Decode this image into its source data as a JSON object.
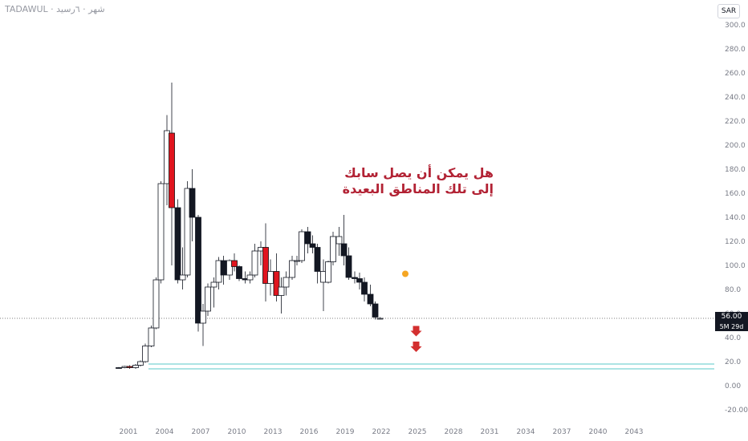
{
  "header": {
    "symbol": "TADAWUL · شهر · ٦رسيد"
  },
  "currency": "SAR",
  "annotation": {
    "line1": "هل يمكن أن يصل سابك",
    "line2": "إلى تلك المناطق البعيدة"
  },
  "last_price": {
    "value": "56.00",
    "countdown": "5M 29d"
  },
  "colors": {
    "up": "#2e7d32",
    "down": "#e0141e",
    "neutral": "#131722",
    "support": "#5ac8c8",
    "marker": "#f5a623",
    "arrow": "#d32f2f"
  },
  "chart_data": {
    "type": "candlestick",
    "title": "",
    "xlabel": "",
    "ylabel": "",
    "x_range": [
      2000,
      2044
    ],
    "ylim": [
      -25,
      305
    ],
    "x_ticks": [
      "2001",
      "2004",
      "2007",
      "2010",
      "2013",
      "2016",
      "2019",
      "2022",
      "2025",
      "2028",
      "2031",
      "2034",
      "2037",
      "2040",
      "2043"
    ],
    "y_ticks": [
      "300.0",
      "280.0",
      "260.0",
      "240.0",
      "220.0",
      "200.0",
      "180.0",
      "160.0",
      "140.0",
      "120.0",
      "100.0",
      "80.0",
      "60.0",
      "40.0",
      "20.0",
      "0.00",
      "-20.00"
    ],
    "last_value": 56,
    "support_lines": [
      18,
      14
    ],
    "marker": {
      "x": 2024.0,
      "y": 93
    },
    "arrows_down": [
      {
        "x": 2024.9,
        "y": 45
      },
      {
        "x": 2024.9,
        "y": 32
      }
    ],
    "candles": [
      {
        "x": 2000.2,
        "o": 15,
        "h": 15.5,
        "l": 14.5,
        "c": 15,
        "style": "neutral"
      },
      {
        "x": 2000.7,
        "o": 15,
        "h": 16.5,
        "l": 14.5,
        "c": 16,
        "style": "up"
      },
      {
        "x": 2001.1,
        "o": 16,
        "h": 17,
        "l": 14,
        "c": 15,
        "style": "down"
      },
      {
        "x": 2001.6,
        "o": 15,
        "h": 18,
        "l": 14,
        "c": 17,
        "style": "up"
      },
      {
        "x": 2002.0,
        "o": 17,
        "h": 21,
        "l": 16,
        "c": 20,
        "style": "up"
      },
      {
        "x": 2002.4,
        "o": 20,
        "h": 35,
        "l": 19,
        "c": 33,
        "style": "up"
      },
      {
        "x": 2002.9,
        "o": 33,
        "h": 50,
        "l": 32,
        "c": 48,
        "style": "up"
      },
      {
        "x": 2003.3,
        "o": 48,
        "h": 90,
        "l": 47,
        "c": 88,
        "style": "up"
      },
      {
        "x": 2003.7,
        "o": 88,
        "h": 170,
        "l": 85,
        "c": 168,
        "style": "up"
      },
      {
        "x": 2004.2,
        "o": 168,
        "h": 225,
        "l": 150,
        "c": 212,
        "style": "up"
      },
      {
        "x": 2004.6,
        "o": 210,
        "h": 252,
        "l": 100,
        "c": 148,
        "style": "down"
      },
      {
        "x": 2005.1,
        "o": 148,
        "h": 155,
        "l": 85,
        "c": 88,
        "style": "neutral"
      },
      {
        "x": 2005.5,
        "o": 88,
        "h": 115,
        "l": 80,
        "c": 92,
        "style": "up"
      },
      {
        "x": 2005.9,
        "o": 92,
        "h": 170,
        "l": 90,
        "c": 164,
        "style": "up"
      },
      {
        "x": 2006.3,
        "o": 164,
        "h": 180,
        "l": 120,
        "c": 140,
        "style": "neutral"
      },
      {
        "x": 2006.8,
        "o": 140,
        "h": 142,
        "l": 45,
        "c": 52,
        "style": "neutral"
      },
      {
        "x": 2007.2,
        "o": 52,
        "h": 68,
        "l": 33,
        "c": 62,
        "style": "up"
      },
      {
        "x": 2007.6,
        "o": 62,
        "h": 85,
        "l": 58,
        "c": 82,
        "style": "up"
      },
      {
        "x": 2008.1,
        "o": 82,
        "h": 90,
        "l": 65,
        "c": 86,
        "style": "up"
      },
      {
        "x": 2008.5,
        "o": 86,
        "h": 107,
        "l": 80,
        "c": 104,
        "style": "up"
      },
      {
        "x": 2008.9,
        "o": 104,
        "h": 108,
        "l": 84,
        "c": 92,
        "style": "neutral"
      },
      {
        "x": 2009.4,
        "o": 92,
        "h": 105,
        "l": 88,
        "c": 104,
        "style": "up"
      },
      {
        "x": 2009.8,
        "o": 104,
        "h": 110,
        "l": 95,
        "c": 99,
        "style": "down"
      },
      {
        "x": 2010.2,
        "o": 99,
        "h": 100,
        "l": 87,
        "c": 89,
        "style": "neutral"
      },
      {
        "x": 2010.7,
        "o": 89,
        "h": 95,
        "l": 85,
        "c": 88,
        "style": "neutral"
      },
      {
        "x": 2011.1,
        "o": 88,
        "h": 95,
        "l": 85,
        "c": 92,
        "style": "up"
      },
      {
        "x": 2011.5,
        "o": 92,
        "h": 118,
        "l": 90,
        "c": 112,
        "style": "up"
      },
      {
        "x": 2012.0,
        "o": 112,
        "h": 120,
        "l": 100,
        "c": 115,
        "style": "up"
      },
      {
        "x": 2012.4,
        "o": 115,
        "h": 135,
        "l": 70,
        "c": 85,
        "style": "down"
      },
      {
        "x": 2012.8,
        "o": 85,
        "h": 105,
        "l": 75,
        "c": 95,
        "style": "up"
      },
      {
        "x": 2013.3,
        "o": 95,
        "h": 110,
        "l": 70,
        "c": 75,
        "style": "down"
      },
      {
        "x": 2013.7,
        "o": 75,
        "h": 90,
        "l": 60,
        "c": 82,
        "style": "up"
      },
      {
        "x": 2014.1,
        "o": 82,
        "h": 95,
        "l": 75,
        "c": 90,
        "style": "up"
      },
      {
        "x": 2014.6,
        "o": 90,
        "h": 108,
        "l": 88,
        "c": 104,
        "style": "up"
      },
      {
        "x": 2015.0,
        "o": 104,
        "h": 108,
        "l": 100,
        "c": 104,
        "style": "up"
      },
      {
        "x": 2015.4,
        "o": 104,
        "h": 130,
        "l": 102,
        "c": 128,
        "style": "up"
      },
      {
        "x": 2015.9,
        "o": 128,
        "h": 132,
        "l": 110,
        "c": 118,
        "style": "neutral"
      },
      {
        "x": 2016.3,
        "o": 118,
        "h": 125,
        "l": 110,
        "c": 115,
        "style": "neutral"
      },
      {
        "x": 2016.7,
        "o": 115,
        "h": 118,
        "l": 85,
        "c": 95,
        "style": "neutral"
      },
      {
        "x": 2017.2,
        "o": 95,
        "h": 105,
        "l": 62,
        "c": 86,
        "style": "up"
      },
      {
        "x": 2017.6,
        "o": 86,
        "h": 104,
        "l": 85,
        "c": 103,
        "style": "up"
      },
      {
        "x": 2018.0,
        "o": 103,
        "h": 128,
        "l": 100,
        "c": 124,
        "style": "up"
      },
      {
        "x": 2018.5,
        "o": 124,
        "h": 132,
        "l": 108,
        "c": 118,
        "style": "up"
      },
      {
        "x": 2018.9,
        "o": 118,
        "h": 142,
        "l": 100,
        "c": 108,
        "style": "neutral"
      },
      {
        "x": 2019.3,
        "o": 108,
        "h": 115,
        "l": 88,
        "c": 90,
        "style": "neutral"
      },
      {
        "x": 2019.8,
        "o": 90,
        "h": 95,
        "l": 85,
        "c": 89,
        "style": "neutral"
      },
      {
        "x": 2020.2,
        "o": 89,
        "h": 94,
        "l": 80,
        "c": 86,
        "style": "neutral"
      },
      {
        "x": 2020.6,
        "o": 86,
        "h": 90,
        "l": 70,
        "c": 76,
        "style": "neutral"
      },
      {
        "x": 2021.1,
        "o": 76,
        "h": 84,
        "l": 66,
        "c": 68,
        "style": "neutral"
      },
      {
        "x": 2021.5,
        "o": 68,
        "h": 70,
        "l": 55,
        "c": 57,
        "style": "neutral"
      },
      {
        "x": 2021.9,
        "o": 56,
        "h": 57,
        "l": 55,
        "c": 56,
        "style": "up"
      }
    ]
  }
}
